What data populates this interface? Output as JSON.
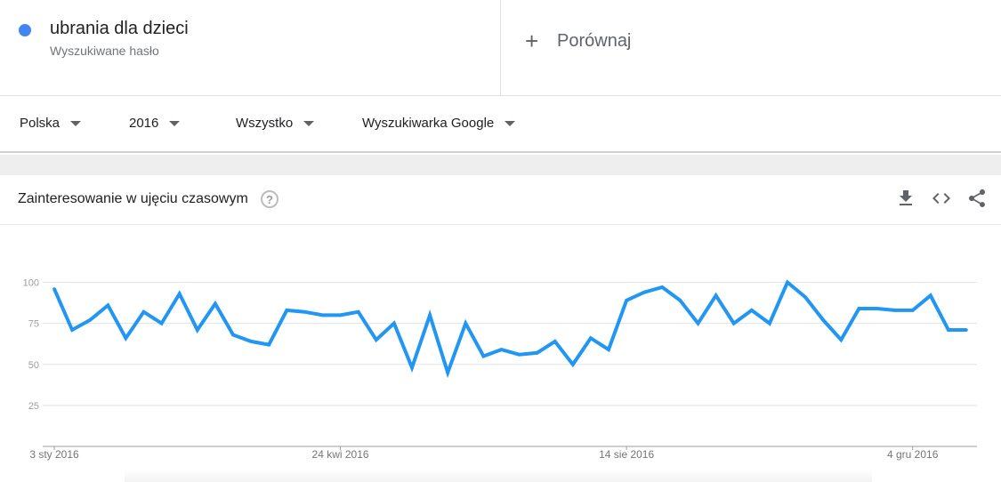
{
  "term": {
    "name": "ubrania dla dzieci",
    "subtitle": "Wyszukiwane hasło",
    "color": "#4285f4"
  },
  "compare": {
    "label": "Porównaj",
    "icon": "plus-icon"
  },
  "filters": [
    {
      "label": "Polska"
    },
    {
      "label": "2016"
    },
    {
      "label": "Wszystko"
    },
    {
      "label": "Wyszukiwarka Google"
    }
  ],
  "card": {
    "title": "Zainteresowanie w ujęciu czasowym",
    "help_icon": "?",
    "tools": [
      "download-icon",
      "embed-icon",
      "share-icon"
    ]
  },
  "chart_data": {
    "type": "line",
    "ylim": [
      0,
      100
    ],
    "yticks": [
      "100",
      "75",
      "50",
      "25"
    ],
    "ytick_values": [
      100,
      75,
      50,
      25
    ],
    "xtick_labels": [
      "3 sty 2016",
      "24 kwi 2016",
      "14 sie 2016",
      "4 gru 2016"
    ],
    "xtick_indices": [
      0,
      16,
      32,
      48
    ],
    "grid": true,
    "line_color": "#2196f3",
    "series": [
      {
        "values": [
          96,
          71,
          77,
          86,
          66,
          82,
          75,
          93,
          71,
          87,
          68,
          64,
          62,
          83,
          82,
          80,
          80,
          82,
          65,
          75,
          48,
          80,
          45,
          75,
          55,
          59,
          56,
          57,
          64,
          50,
          66,
          59,
          89,
          94,
          97,
          89,
          75,
          92,
          75,
          83,
          75,
          100,
          91,
          77,
          65,
          84,
          84,
          83,
          83,
          92,
          71,
          71
        ]
      }
    ]
  }
}
